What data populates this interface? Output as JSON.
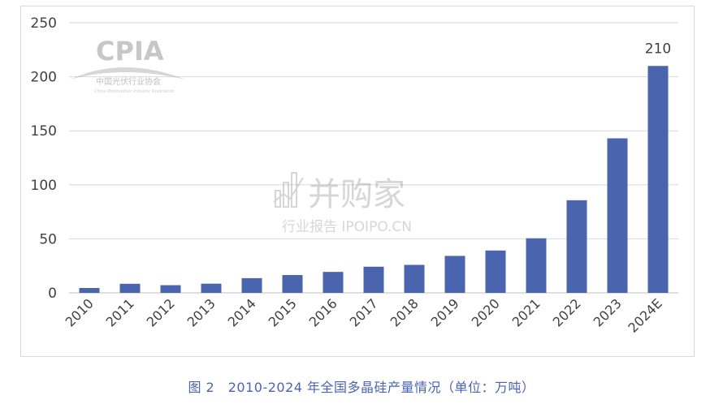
{
  "watermark_logo": {
    "acronym": "CPIA",
    "name_cn": "中国光伏行业协会",
    "name_en": "China Photovoltaic Industry Association"
  },
  "watermark_center": {
    "brand": "并购家",
    "sub": "行业报告 IPOIPO.CN"
  },
  "caption": "图 2　2010-2024 年全国多晶硅产量情况（单位：万吨）",
  "colors": {
    "bar": "#4a64ad",
    "caption": "#4a63b5"
  },
  "chart_data": {
    "type": "bar",
    "categories": [
      "2010",
      "2011",
      "2012",
      "2013",
      "2014",
      "2015",
      "2016",
      "2017",
      "2018",
      "2019",
      "2020",
      "2021",
      "2022",
      "2023",
      "2024E"
    ],
    "values": [
      4.5,
      8.4,
      7.1,
      8.5,
      13.6,
      16.5,
      19.4,
      24.2,
      25.9,
      34.2,
      39.2,
      50.5,
      85.7,
      143,
      210
    ],
    "data_labels": {
      "2024E": "210"
    },
    "yticks": [
      "0",
      "50",
      "100",
      "150",
      "200",
      "250"
    ],
    "ylim": [
      0,
      250
    ],
    "grid": true,
    "legend": "none"
  }
}
